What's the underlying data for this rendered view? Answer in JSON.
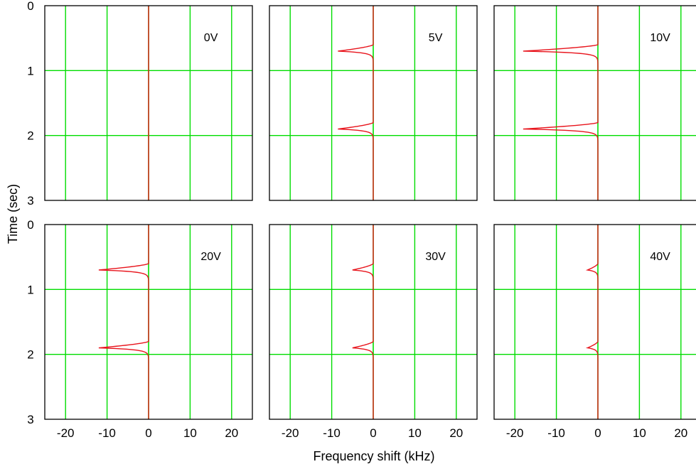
{
  "figure": {
    "xlabel": "Frequency shift (kHz)",
    "ylabel": "Time (sec)"
  },
  "chart_data": {
    "type": "line",
    "layout": "2x3 grid of panels, shared axes",
    "xlabel": "Frequency shift (kHz)",
    "ylabel": "Time (sec)",
    "xlim": [
      -25,
      25
    ],
    "ylim": [
      0,
      3
    ],
    "y_inverted": true,
    "xticks": [
      -20,
      -10,
      0,
      10,
      20
    ],
    "yticks": [
      0,
      1,
      2,
      3
    ],
    "grid": true,
    "colors": {
      "grid": "#00dd00",
      "trace": "#e8141c",
      "axis": "#000000"
    },
    "panels": [
      {
        "label": "0V",
        "dip_depth_khz": 0,
        "dip_times_sec": [
          0.7,
          1.9
        ]
      },
      {
        "label": "5V",
        "dip_depth_khz": -8.5,
        "dip_times_sec": [
          0.7,
          1.9
        ]
      },
      {
        "label": "10V",
        "dip_depth_khz": -18,
        "dip_times_sec": [
          0.7,
          1.9
        ]
      },
      {
        "label": "20V",
        "dip_depth_khz": -12,
        "dip_times_sec": [
          0.7,
          1.9
        ]
      },
      {
        "label": "30V",
        "dip_depth_khz": -5,
        "dip_times_sec": [
          0.7,
          1.9
        ]
      },
      {
        "label": "40V",
        "dip_depth_khz": -2.5,
        "dip_times_sec": [
          0.7,
          1.9
        ]
      }
    ]
  }
}
